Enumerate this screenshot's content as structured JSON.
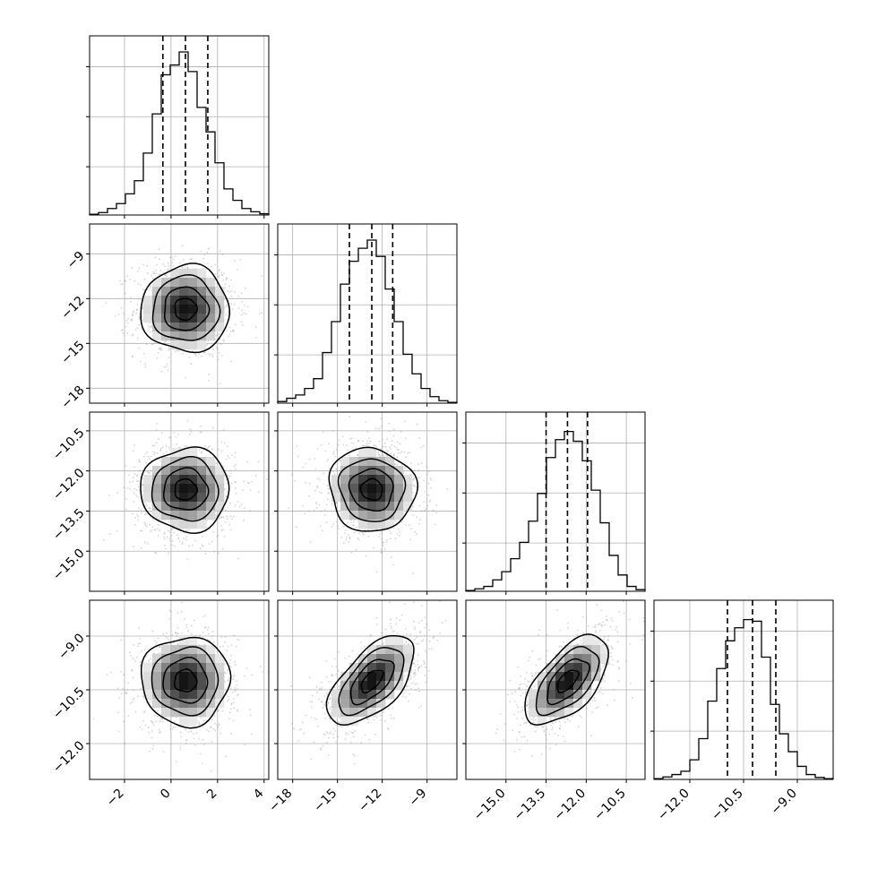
{
  "chart_data": {
    "type": "corner",
    "grid": true,
    "colors": {
      "line": "#000000",
      "grid": "#b0b0b0",
      "scatter": "#888888",
      "background": "#ffffff"
    },
    "parameters": [
      {
        "range": [
          -3.5,
          4.2
        ],
        "ticks": [
          -2,
          0,
          2,
          4
        ],
        "tick_labels": [
          "−2",
          "0",
          "2",
          "4"
        ],
        "quantiles": [
          -0.35,
          0.62,
          1.58
        ],
        "mean": 0.62,
        "sd": 0.95,
        "hist_heights": [
          0.005,
          0.015,
          0.04,
          0.07,
          0.13,
          0.21,
          0.38,
          0.62,
          0.86,
          0.92,
          1.0,
          0.88,
          0.66,
          0.51,
          0.32,
          0.16,
          0.09,
          0.04,
          0.02,
          0.008
        ]
      },
      {
        "range": [
          -19.0,
          -7.0
        ],
        "ticks": [
          -18,
          -15,
          -12,
          -9
        ],
        "tick_labels": [
          "−18",
          "−15",
          "−12",
          "−9"
        ],
        "quantiles": [
          -14.2,
          -12.7,
          -11.3
        ],
        "mean": -12.7,
        "sd": 1.45,
        "hist_heights": [
          0.01,
          0.03,
          0.05,
          0.09,
          0.15,
          0.31,
          0.5,
          0.73,
          0.87,
          0.95,
          1.0,
          0.9,
          0.7,
          0.5,
          0.3,
          0.18,
          0.09,
          0.04,
          0.015,
          0.005
        ]
      },
      {
        "range": [
          -16.5,
          -9.8
        ],
        "ticks": [
          -15.0,
          -13.5,
          -12.0,
          -10.5
        ],
        "tick_labels": [
          "−15.0",
          "−13.5",
          "−12.0",
          "−10.5"
        ],
        "quantiles": [
          -13.5,
          -12.7,
          -11.95
        ],
        "mean": -12.7,
        "sd": 0.78,
        "hist_heights": [
          0.005,
          0.015,
          0.03,
          0.07,
          0.12,
          0.2,
          0.3,
          0.43,
          0.6,
          0.82,
          0.93,
          0.98,
          0.92,
          0.8,
          0.62,
          0.42,
          0.22,
          0.1,
          0.03,
          0.01
        ]
      },
      {
        "range": [
          -13.0,
          -8.0
        ],
        "ticks": [
          -12.0,
          -10.5,
          -9.0
        ],
        "tick_labels": [
          "−12.0",
          "−10.5",
          "−9.0"
        ],
        "quantiles": [
          -10.95,
          -10.25,
          -9.6
        ],
        "mean": -10.25,
        "sd": 0.62,
        "hist_heights": [
          0.005,
          0.015,
          0.03,
          0.05,
          0.12,
          0.25,
          0.48,
          0.68,
          0.85,
          0.93,
          0.98,
          0.97,
          0.75,
          0.46,
          0.28,
          0.17,
          0.08,
          0.03,
          0.012,
          0.005
        ]
      }
    ],
    "correlations": [
      {
        "i": 1,
        "j": 0,
        "rho": 0.0
      },
      {
        "i": 2,
        "j": 0,
        "rho": 0.0
      },
      {
        "i": 2,
        "j": 1,
        "rho": -0.05
      },
      {
        "i": 3,
        "j": 0,
        "rho": 0.0
      },
      {
        "i": 3,
        "j": 1,
        "rho": 0.6
      },
      {
        "i": 3,
        "j": 2,
        "rho": 0.6
      }
    ],
    "contour_levels_sigma": [
      0.5,
      1.0,
      1.5,
      2.0
    ]
  }
}
